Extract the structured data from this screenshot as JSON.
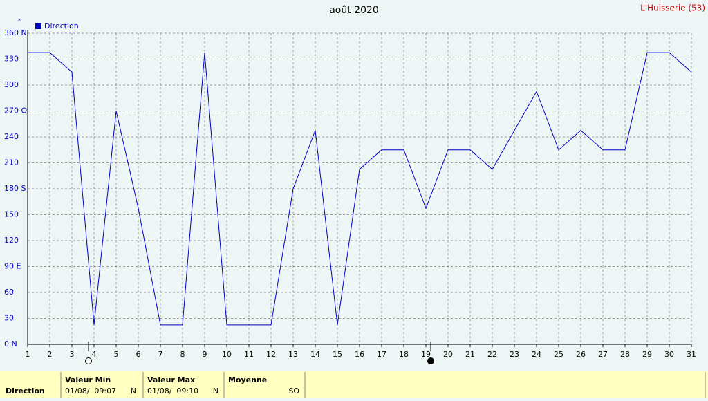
{
  "chart_data": {
    "type": "line",
    "title": "août 2020",
    "station": "L'Huisserie (53)",
    "y_unit": "°",
    "x": [
      1,
      2,
      3,
      4,
      5,
      6,
      7,
      8,
      9,
      10,
      11,
      12,
      13,
      14,
      15,
      16,
      17,
      18,
      19,
      20,
      21,
      22,
      23,
      24,
      25,
      26,
      27,
      28,
      29,
      30,
      31
    ],
    "series": [
      {
        "name": "Direction",
        "color": "#0000c8",
        "values": [
          337.5,
          337.5,
          315,
          22.5,
          270,
          157.5,
          22.5,
          22.5,
          337.5,
          22.5,
          22.5,
          22.5,
          180,
          247.5,
          22.5,
          202.5,
          225,
          225,
          157.5,
          225,
          225,
          202.5,
          247.5,
          292.5,
          225,
          247.5,
          225,
          225,
          337.5,
          337.5,
          315
        ]
      }
    ],
    "xlim": [
      1,
      31
    ],
    "xticks": [
      1,
      2,
      3,
      4,
      5,
      6,
      7,
      8,
      9,
      10,
      11,
      12,
      13,
      14,
      15,
      16,
      17,
      18,
      19,
      20,
      21,
      22,
      23,
      24,
      25,
      26,
      27,
      28,
      29,
      30,
      31
    ],
    "ylim": [
      0,
      360
    ],
    "yticks": [
      {
        "value": 0,
        "label": "0 N"
      },
      30,
      60,
      {
        "value": 90,
        "label": "90 E"
      },
      120,
      150,
      {
        "value": 180,
        "label": "180 S"
      },
      210,
      240,
      {
        "value": 270,
        "label": "270 O"
      },
      300,
      330,
      {
        "value": 360,
        "label": "360 N"
      }
    ],
    "grid": true
  },
  "summary": {
    "label": "Direction",
    "min": {
      "title": "Valeur Min",
      "date": "01/08/  09:07",
      "value": "N"
    },
    "max": {
      "title": "Valeur Max",
      "date": "01/08/  09:10",
      "value": "N"
    },
    "mean": {
      "title": "Moyenne",
      "value": "SO"
    }
  }
}
